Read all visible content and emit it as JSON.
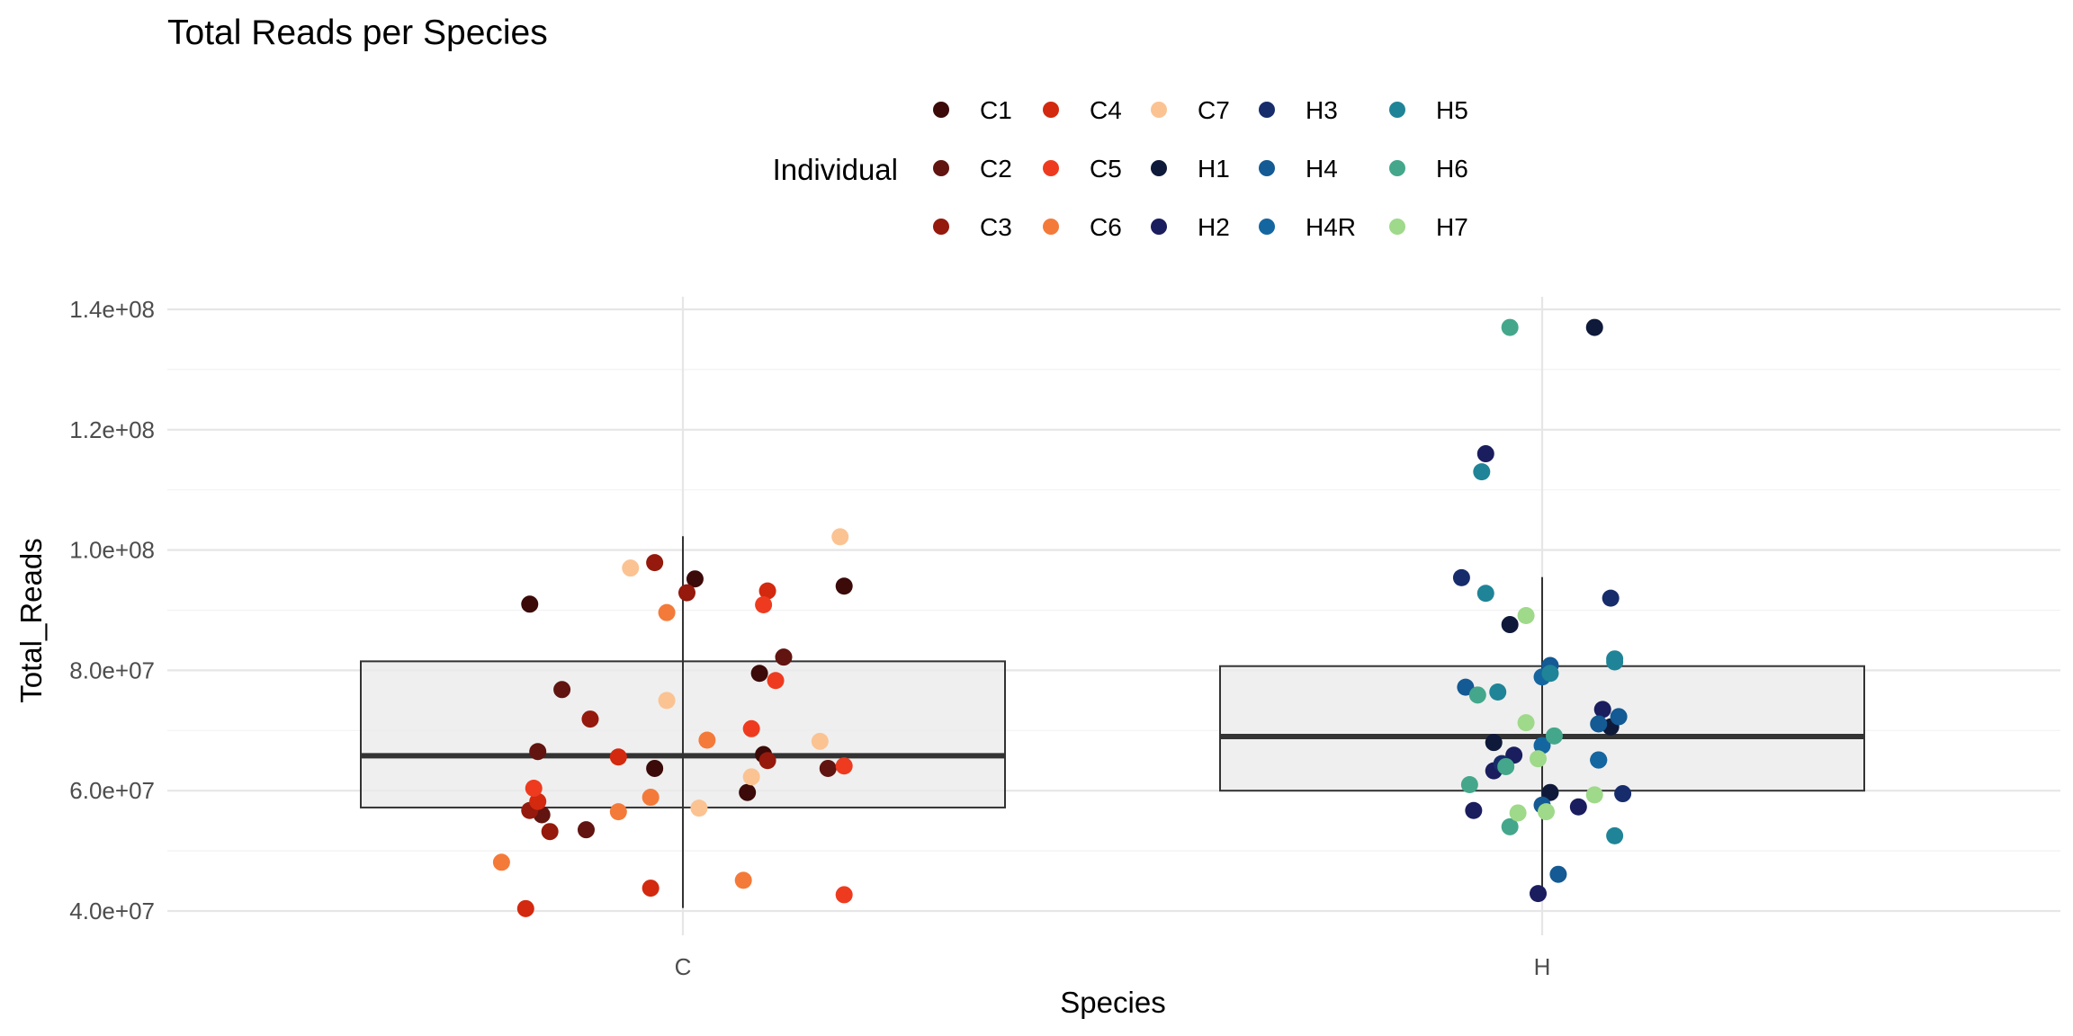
{
  "chart_data": {
    "type": "boxplot+jitter",
    "title": "Total Reads per Species",
    "xlabel": "Species",
    "ylabel": "Total_Reads",
    "categories": [
      "C",
      "H"
    ],
    "ylim": [
      38000000,
      142000000
    ],
    "y_ticks": [
      {
        "value": 40000000,
        "label": "4.0e+07"
      },
      {
        "value": 60000000,
        "label": "6.0e+07"
      },
      {
        "value": 80000000,
        "label": "8.0e+07"
      },
      {
        "value": 100000000,
        "label": "1.0e+08"
      },
      {
        "value": 120000000,
        "label": "1.2e+08"
      },
      {
        "value": 140000000,
        "label": "1.4e+08"
      }
    ],
    "legend": {
      "title": "Individual",
      "position": "top",
      "entries": [
        {
          "label": "C1",
          "color": "#3b0a09"
        },
        {
          "label": "C2",
          "color": "#611410"
        },
        {
          "label": "C3",
          "color": "#95190c"
        },
        {
          "label": "C4",
          "color": "#d3290f"
        },
        {
          "label": "C5",
          "color": "#ee3b1f"
        },
        {
          "label": "C6",
          "color": "#f47a3a"
        },
        {
          "label": "C7",
          "color": "#fbc392"
        },
        {
          "label": "H1",
          "color": "#0f1a3a"
        },
        {
          "label": "H2",
          "color": "#1a1d5e"
        },
        {
          "label": "H3",
          "color": "#172c6b"
        },
        {
          "label": "H4",
          "color": "#145a94"
        },
        {
          "label": "H4R",
          "color": "#1466a0"
        },
        {
          "label": "H5",
          "color": "#1f8497"
        },
        {
          "label": "H6",
          "color": "#44a78b"
        },
        {
          "label": "H7",
          "color": "#9fd98a"
        }
      ]
    },
    "boxes": [
      {
        "category": "C",
        "lower_whisker": 40500000,
        "q1": 57200000,
        "median": 65800000,
        "q3": 81500000,
        "upper_whisker": 102300000
      },
      {
        "category": "H",
        "lower_whisker": 43200000,
        "q1": 60000000,
        "median": 69000000,
        "q3": 80700000,
        "upper_whisker": 95500000
      }
    ],
    "points": [
      {
        "category": "C",
        "jitter": -0.38,
        "y": 91000000,
        "individual": "C1"
      },
      {
        "category": "C",
        "jitter": 0.03,
        "y": 95200000,
        "individual": "C1"
      },
      {
        "category": "C",
        "jitter": 0.19,
        "y": 79500000,
        "individual": "C1"
      },
      {
        "category": "C",
        "jitter": -0.07,
        "y": 63700000,
        "individual": "C1"
      },
      {
        "category": "C",
        "jitter": 0.16,
        "y": 59700000,
        "individual": "C1"
      },
      {
        "category": "C",
        "jitter": 0.2,
        "y": 66000000,
        "individual": "C1"
      },
      {
        "category": "C",
        "jitter": 0.4,
        "y": 94000000,
        "individual": "C1"
      },
      {
        "category": "C",
        "jitter": -0.3,
        "y": 76800000,
        "individual": "C2"
      },
      {
        "category": "C",
        "jitter": -0.36,
        "y": 66500000,
        "individual": "C2"
      },
      {
        "category": "C",
        "jitter": 0.25,
        "y": 82200000,
        "individual": "C2"
      },
      {
        "category": "C",
        "jitter": 0.36,
        "y": 63700000,
        "individual": "C2"
      },
      {
        "category": "C",
        "jitter": -0.24,
        "y": 53500000,
        "individual": "C2"
      },
      {
        "category": "C",
        "jitter": -0.35,
        "y": 56000000,
        "individual": "C2"
      },
      {
        "category": "C",
        "jitter": 0.01,
        "y": 92900000,
        "individual": "C3"
      },
      {
        "category": "C",
        "jitter": -0.38,
        "y": 56700000,
        "individual": "C3"
      },
      {
        "category": "C",
        "jitter": -0.33,
        "y": 53200000,
        "individual": "C3"
      },
      {
        "category": "C",
        "jitter": -0.07,
        "y": 97900000,
        "individual": "C3"
      },
      {
        "category": "C",
        "jitter": 0.21,
        "y": 65000000,
        "individual": "C3"
      },
      {
        "category": "C",
        "jitter": -0.23,
        "y": 71900000,
        "individual": "C3"
      },
      {
        "category": "C",
        "jitter": -0.39,
        "y": 40400000,
        "individual": "C4"
      },
      {
        "category": "C",
        "jitter": -0.08,
        "y": 43800000,
        "individual": "C4"
      },
      {
        "category": "C",
        "jitter": 0.21,
        "y": 93200000,
        "individual": "C4"
      },
      {
        "category": "C",
        "jitter": -0.16,
        "y": 65600000,
        "individual": "C4"
      },
      {
        "category": "C",
        "jitter": -0.36,
        "y": 58200000,
        "individual": "C4"
      },
      {
        "category": "C",
        "jitter": 0.2,
        "y": 90900000,
        "individual": "C5"
      },
      {
        "category": "C",
        "jitter": 0.23,
        "y": 78300000,
        "individual": "C5"
      },
      {
        "category": "C",
        "jitter": 0.17,
        "y": 70300000,
        "individual": "C5"
      },
      {
        "category": "C",
        "jitter": 0.4,
        "y": 64100000,
        "individual": "C5"
      },
      {
        "category": "C",
        "jitter": 0.4,
        "y": 42700000,
        "individual": "C5"
      },
      {
        "category": "C",
        "jitter": -0.37,
        "y": 60400000,
        "individual": "C5"
      },
      {
        "category": "C",
        "jitter": -0.45,
        "y": 48100000,
        "individual": "C6"
      },
      {
        "category": "C",
        "jitter": -0.04,
        "y": 89600000,
        "individual": "C6"
      },
      {
        "category": "C",
        "jitter": 0.06,
        "y": 68400000,
        "individual": "C6"
      },
      {
        "category": "C",
        "jitter": -0.08,
        "y": 58900000,
        "individual": "C6"
      },
      {
        "category": "C",
        "jitter": -0.16,
        "y": 56500000,
        "individual": "C6"
      },
      {
        "category": "C",
        "jitter": 0.15,
        "y": 45100000,
        "individual": "C6"
      },
      {
        "category": "C",
        "jitter": -0.13,
        "y": 97000000,
        "individual": "C7"
      },
      {
        "category": "C",
        "jitter": -0.04,
        "y": 75000000,
        "individual": "C7"
      },
      {
        "category": "C",
        "jitter": 0.39,
        "y": 102200000,
        "individual": "C7"
      },
      {
        "category": "C",
        "jitter": 0.17,
        "y": 62300000,
        "individual": "C7"
      },
      {
        "category": "C",
        "jitter": 0.04,
        "y": 57100000,
        "individual": "C7"
      },
      {
        "category": "C",
        "jitter": 0.34,
        "y": 68200000,
        "individual": "C7"
      },
      {
        "category": "H",
        "jitter": 0.13,
        "y": 137000000,
        "individual": "H1"
      },
      {
        "category": "H",
        "jitter": -0.08,
        "y": 87600000,
        "individual": "H1"
      },
      {
        "category": "H",
        "jitter": -0.12,
        "y": 68000000,
        "individual": "H1"
      },
      {
        "category": "H",
        "jitter": 0.02,
        "y": 59700000,
        "individual": "H1"
      },
      {
        "category": "H",
        "jitter": 0.17,
        "y": 70600000,
        "individual": "H1"
      },
      {
        "category": "H",
        "jitter": -0.14,
        "y": 116000000,
        "individual": "H2"
      },
      {
        "category": "H",
        "jitter": -0.17,
        "y": 56700000,
        "individual": "H2"
      },
      {
        "category": "H",
        "jitter": -0.01,
        "y": 42900000,
        "individual": "H2"
      },
      {
        "category": "H",
        "jitter": 0.15,
        "y": 73500000,
        "individual": "H2"
      },
      {
        "category": "H",
        "jitter": -0.07,
        "y": 65900000,
        "individual": "H2"
      },
      {
        "category": "H",
        "jitter": -0.12,
        "y": 63300000,
        "individual": "H2"
      },
      {
        "category": "H",
        "jitter": 0.09,
        "y": 57300000,
        "individual": "H2"
      },
      {
        "category": "H",
        "jitter": -0.2,
        "y": 95400000,
        "individual": "H3"
      },
      {
        "category": "H",
        "jitter": 0.17,
        "y": 92000000,
        "individual": "H3"
      },
      {
        "category": "H",
        "jitter": 0.2,
        "y": 59500000,
        "individual": "H3"
      },
      {
        "category": "H",
        "jitter": 0.14,
        "y": 65100000,
        "individual": "H3"
      },
      {
        "category": "H",
        "jitter": -0.1,
        "y": 64500000,
        "individual": "H3"
      },
      {
        "category": "H",
        "jitter": 0.02,
        "y": 80800000,
        "individual": "H4"
      },
      {
        "category": "H",
        "jitter": 0.19,
        "y": 72300000,
        "individual": "H4"
      },
      {
        "category": "H",
        "jitter": 0.04,
        "y": 46100000,
        "individual": "H4"
      },
      {
        "category": "H",
        "jitter": -0.19,
        "y": 77200000,
        "individual": "H4"
      },
      {
        "category": "H",
        "jitter": 0.0,
        "y": 57600000,
        "individual": "H4"
      },
      {
        "category": "H",
        "jitter": 0.14,
        "y": 71100000,
        "individual": "H4"
      },
      {
        "category": "H",
        "jitter": 0.0,
        "y": 78900000,
        "individual": "H4R"
      },
      {
        "category": "H",
        "jitter": 0.0,
        "y": 67500000,
        "individual": "H4R"
      },
      {
        "category": "H",
        "jitter": 0.14,
        "y": 65100000,
        "individual": "H4R"
      },
      {
        "category": "H",
        "jitter": 0.02,
        "y": 79500000,
        "individual": "H5"
      },
      {
        "category": "H",
        "jitter": -0.15,
        "y": 113000000,
        "individual": "H5"
      },
      {
        "category": "H",
        "jitter": -0.14,
        "y": 92800000,
        "individual": "H5"
      },
      {
        "category": "H",
        "jitter": -0.11,
        "y": 76400000,
        "individual": "H5"
      },
      {
        "category": "H",
        "jitter": 0.18,
        "y": 81400000,
        "individual": "H5"
      },
      {
        "category": "H",
        "jitter": 0.18,
        "y": 52500000,
        "individual": "H5"
      },
      {
        "category": "H",
        "jitter": 0.18,
        "y": 81900000,
        "individual": "H5"
      },
      {
        "category": "H",
        "jitter": -0.08,
        "y": 137000000,
        "individual": "H6"
      },
      {
        "category": "H",
        "jitter": -0.16,
        "y": 75900000,
        "individual": "H6"
      },
      {
        "category": "H",
        "jitter": -0.18,
        "y": 61000000,
        "individual": "H6"
      },
      {
        "category": "H",
        "jitter": -0.09,
        "y": 64000000,
        "individual": "H6"
      },
      {
        "category": "H",
        "jitter": -0.08,
        "y": 54000000,
        "individual": "H6"
      },
      {
        "category": "H",
        "jitter": 0.03,
        "y": 69100000,
        "individual": "H6"
      },
      {
        "category": "H",
        "jitter": -0.04,
        "y": 89100000,
        "individual": "H7"
      },
      {
        "category": "H",
        "jitter": -0.04,
        "y": 71300000,
        "individual": "H7"
      },
      {
        "category": "H",
        "jitter": -0.01,
        "y": 65300000,
        "individual": "H7"
      },
      {
        "category": "H",
        "jitter": -0.06,
        "y": 56300000,
        "individual": "H7"
      },
      {
        "category": "H",
        "jitter": 0.01,
        "y": 56500000,
        "individual": "H7"
      },
      {
        "category": "H",
        "jitter": 0.13,
        "y": 59300000,
        "individual": "H7"
      }
    ]
  }
}
